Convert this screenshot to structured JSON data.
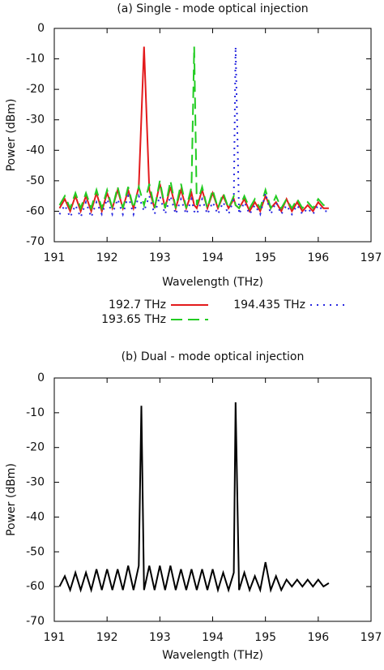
{
  "chart_data": [
    {
      "type": "line",
      "title": "(a) Single - mode optical injection",
      "xlabel": "Wavelength (THz)",
      "ylabel": "Power (dBm)",
      "xlim": [
        191,
        197
      ],
      "xticks": [
        191,
        192,
        193,
        194,
        195,
        196,
        197
      ],
      "ylim": [
        -70,
        0
      ],
      "yticks": [
        -70,
        -60,
        -50,
        -40,
        -30,
        -20,
        -10,
        0
      ],
      "x": [
        191.1,
        191.2,
        191.3,
        191.4,
        191.5,
        191.6,
        191.7,
        191.8,
        191.9,
        192,
        192.1,
        192.2,
        192.3,
        192.4,
        192.5,
        192.6,
        192.7,
        192.8,
        192.9,
        193,
        193.1,
        193.2,
        193.3,
        193.4,
        193.5,
        193.6,
        193.65,
        193.7,
        193.8,
        193.9,
        194,
        194.1,
        194.2,
        194.3,
        194.4,
        194.435,
        194.5,
        194.6,
        194.7,
        194.8,
        194.9,
        195,
        195.1,
        195.2,
        195.3,
        195.4,
        195.5,
        195.6,
        195.7,
        195.8,
        195.9,
        196,
        196.1,
        196.2
      ],
      "series": [
        {
          "name": "192.7 THz",
          "color": "#e31a1c",
          "dash": "solid",
          "values": [
            -59,
            -56,
            -60,
            -55,
            -60,
            -55,
            -60,
            -54,
            -60,
            -54,
            -59,
            -53,
            -59,
            -53,
            -59,
            -52,
            -6,
            -53,
            -59,
            -51,
            -59,
            -52,
            -59,
            -53,
            -59,
            -54,
            -58,
            -59,
            -53,
            -59,
            -54,
            -59,
            -55,
            -59,
            -56,
            -58,
            -59,
            -56,
            -60,
            -57,
            -60,
            -55,
            -59,
            -57,
            -60,
            -56,
            -60,
            -57,
            -60,
            -58,
            -60,
            -57,
            -59,
            -59
          ]
        },
        {
          "name": "193.65 THz",
          "color": "#22cc22",
          "dash": "dashed",
          "values": [
            -58,
            -55,
            -59,
            -54,
            -59,
            -54,
            -59,
            -53,
            -59,
            -53,
            -59,
            -52,
            -59,
            -52,
            -59,
            -52,
            -58,
            -51,
            -59,
            -50,
            -59,
            -50,
            -59,
            -51,
            -59,
            -52,
            -6,
            -58,
            -52,
            -59,
            -53,
            -59,
            -54,
            -59,
            -55,
            -58,
            -59,
            -55,
            -59,
            -56,
            -59,
            -53,
            -59,
            -55,
            -59,
            -56,
            -59,
            -56,
            -59,
            -57,
            -59,
            -56,
            -58,
            -58
          ]
        },
        {
          "name": "194.435 THz",
          "color": "#2a2ae0",
          "dash": "dotted",
          "values": [
            -61,
            -58,
            -62,
            -58,
            -62,
            -57,
            -62,
            -57,
            -61,
            -56,
            -61,
            -56,
            -61,
            -55,
            -61,
            -55,
            -60,
            -55,
            -61,
            -55,
            -61,
            -55,
            -61,
            -56,
            -61,
            -56,
            -60,
            -61,
            -56,
            -61,
            -57,
            -61,
            -57,
            -61,
            -56,
            -6,
            -61,
            -57,
            -61,
            -58,
            -61,
            -54,
            -61,
            -57,
            -61,
            -58,
            -61,
            -58,
            -61,
            -59,
            -61,
            -58,
            -60,
            -60
          ]
        }
      ]
    },
    {
      "type": "line",
      "title": "(b) Dual - mode optical injection",
      "xlabel": "Wavelength (THz)",
      "ylabel": "Power (dBm)",
      "xlim": [
        191,
        197
      ],
      "xticks": [
        191,
        192,
        193,
        194,
        195,
        196,
        197
      ],
      "ylim": [
        -70,
        0
      ],
      "yticks": [
        -70,
        -60,
        -50,
        -40,
        -30,
        -20,
        -10,
        0
      ],
      "x": [
        191.1,
        191.2,
        191.3,
        191.4,
        191.5,
        191.6,
        191.7,
        191.8,
        191.9,
        192,
        192.1,
        192.2,
        192.3,
        192.4,
        192.5,
        192.6,
        192.65,
        192.7,
        192.8,
        192.9,
        193,
        193.1,
        193.2,
        193.3,
        193.4,
        193.5,
        193.6,
        193.7,
        193.8,
        193.9,
        194,
        194.1,
        194.2,
        194.3,
        194.4,
        194.435,
        194.5,
        194.6,
        194.7,
        194.8,
        194.9,
        195,
        195.1,
        195.2,
        195.3,
        195.4,
        195.5,
        195.6,
        195.7,
        195.8,
        195.9,
        196,
        196.1,
        196.2
      ],
      "series": [
        {
          "color": "#000000",
          "dash": "solid",
          "values": [
            -60,
            -57,
            -61,
            -56,
            -61,
            -56,
            -61,
            -55,
            -61,
            -55,
            -61,
            -55,
            -61,
            -54,
            -61,
            -54,
            -8,
            -61,
            -54,
            -61,
            -54,
            -61,
            -54,
            -61,
            -55,
            -61,
            -55,
            -61,
            -55,
            -61,
            -55,
            -61,
            -56,
            -61,
            -56,
            -7,
            -61,
            -56,
            -61,
            -57,
            -61,
            -53,
            -61,
            -57,
            -61,
            -58,
            -60,
            -58,
            -60,
            -58,
            -60,
            -58,
            -60,
            -59
          ]
        }
      ]
    }
  ]
}
